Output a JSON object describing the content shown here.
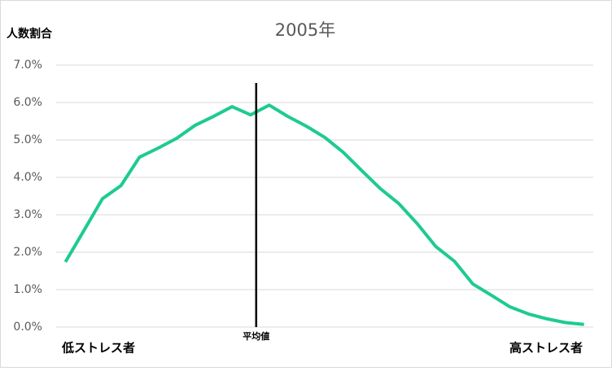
{
  "chart_data": {
    "type": "line",
    "title": "2005年",
    "y_label": "人数割合",
    "categories": [
      null,
      null,
      null,
      null,
      null,
      null,
      null,
      null,
      null,
      null,
      null,
      null,
      null,
      null,
      null,
      null,
      null,
      null,
      null,
      null,
      null,
      null,
      null,
      null,
      null,
      null,
      null,
      null,
      null
    ],
    "series": [
      {
        "color": "#1ecb8f",
        "values": [
          1.74,
          2.58,
          3.43,
          3.78,
          4.54,
          4.78,
          5.04,
          5.39,
          5.63,
          5.89,
          5.67,
          5.93,
          5.63,
          5.37,
          5.07,
          4.67,
          4.18,
          3.7,
          3.3,
          2.76,
          2.15,
          1.76,
          1.15,
          0.85,
          0.54,
          0.35,
          0.22,
          0.12,
          0.07
        ]
      }
    ],
    "ylim": [
      0,
      7
    ],
    "yticks": [
      {
        "value": 0,
        "label": "0.0%"
      },
      {
        "value": 1,
        "label": "1.0%"
      },
      {
        "value": 2,
        "label": "2.0%"
      },
      {
        "value": 3,
        "label": "3.0%"
      },
      {
        "value": 4,
        "label": "4.0%"
      },
      {
        "value": 5,
        "label": "5.0%"
      },
      {
        "value": 6,
        "label": "6.0%"
      },
      {
        "value": 7,
        "label": "7.0%"
      }
    ],
    "grid": true,
    "mean_line": {
      "label": "平均値",
      "x": 10.3
    },
    "x_start_label": "低ストレス者",
    "x_end_label": "高ストレス者"
  }
}
